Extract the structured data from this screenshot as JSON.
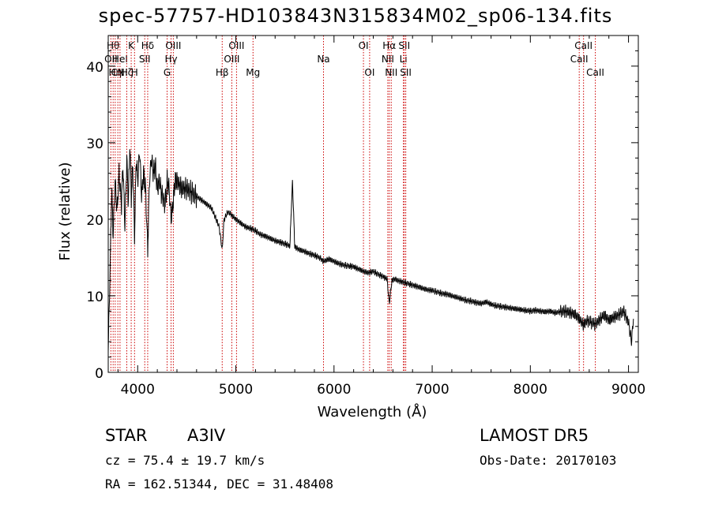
{
  "title": "spec-57757-HD103843N315834M02_sp06-134.fits",
  "info": {
    "object_class": "STAR",
    "subclass": "A3IV",
    "survey": "LAMOST  DR5",
    "cz": "cz = 75.4 ± 19.7 km/s",
    "obs_date": "Obs-Date: 20170103",
    "coords": "RA = 162.51344, DEC =  31.48408"
  },
  "chart_data": {
    "type": "line",
    "xlabel": "Wavelength (Å)",
    "ylabel": "Flux (relative)",
    "xlim": [
      3700,
      9100
    ],
    "ylim": [
      0,
      44
    ],
    "xticks": [
      4000,
      5000,
      6000,
      7000,
      8000,
      9000
    ],
    "yticks": [
      0,
      10,
      20,
      30,
      40
    ],
    "line_color": "#000000",
    "marker_color": "#cc0000",
    "series": [
      {
        "x": [
          3700,
          3720,
          3735,
          3750,
          3770,
          3790,
          3810,
          3835,
          3850,
          3870,
          3889,
          3905,
          3920,
          3935,
          3950,
          3968,
          3985,
          4000,
          4020,
          4040,
          4060,
          4080,
          4102,
          4120,
          4140,
          4160,
          4180,
          4200,
          4220,
          4250,
          4280,
          4300,
          4320,
          4340,
          4360,
          4380,
          4400,
          4450,
          4500,
          4550,
          4600,
          4650,
          4700,
          4750,
          4800,
          4830,
          4861,
          4880,
          4920,
          4960,
          5000,
          5050,
          5100,
          5150,
          5200,
          5250,
          5300,
          5350,
          5400,
          5450,
          5500,
          5550,
          5577,
          5600,
          5650,
          5700,
          5750,
          5800,
          5850,
          5893,
          5950,
          6000,
          6050,
          6100,
          6150,
          6200,
          6250,
          6300,
          6350,
          6400,
          6450,
          6500,
          6540,
          6563,
          6590,
          6620,
          6650,
          6700,
          6750,
          6800,
          6850,
          6900,
          6950,
          7000,
          7050,
          7100,
          7150,
          7200,
          7250,
          7300,
          7350,
          7400,
          7450,
          7500,
          7550,
          7600,
          7650,
          7700,
          7750,
          7800,
          7850,
          7900,
          7950,
          8000,
          8050,
          8100,
          8150,
          8200,
          8250,
          8300,
          8350,
          8400,
          8450,
          8498,
          8542,
          8580,
          8620,
          8662,
          8700,
          8750,
          8800,
          8850,
          8900,
          8950,
          9000,
          9030,
          9050
        ],
        "y": [
          3,
          14,
          24,
          18,
          25,
          21,
          26,
          22,
          27,
          19,
          28,
          22,
          30,
          23,
          27,
          18,
          28,
          25,
          29,
          23,
          26,
          24,
          16,
          25,
          28,
          26,
          27,
          24,
          25,
          23,
          22,
          25,
          24,
          20,
          22,
          25,
          25,
          24,
          24,
          23.5,
          23,
          22.5,
          22,
          21.5,
          20,
          19,
          16,
          20,
          21,
          20.5,
          20,
          19.5,
          19,
          18.8,
          18.5,
          18,
          17.8,
          17.5,
          17.2,
          17,
          16.8,
          16.5,
          25,
          16.4,
          16,
          15.8,
          15.5,
          15.3,
          15,
          14.5,
          14.8,
          14.5,
          14.2,
          14,
          13.9,
          13.8,
          13.5,
          13.2,
          13,
          13.2,
          12.8,
          12.5,
          12.2,
          9,
          12,
          12.2,
          12,
          11.8,
          11.6,
          11.4,
          11.2,
          11,
          10.8,
          10.7,
          10.5,
          10.3,
          10.2,
          10,
          9.8,
          9.6,
          9.4,
          9.3,
          9.1,
          9,
          9.2,
          8.9,
          8.7,
          8.6,
          8.5,
          8.4,
          8.3,
          8.2,
          8.1,
          8,
          8.1,
          8,
          7.9,
          8,
          7.8,
          7.9,
          8,
          7.8,
          7.6,
          7,
          6.2,
          6.8,
          6.5,
          6.3,
          6.8,
          7.5,
          6.8,
          7.2,
          7.5,
          8,
          6.5,
          4,
          7
        ]
      }
    ],
    "line_markers": [
      {
        "wl": 3727,
        "labels": [
          "OII"
        ],
        "row": 2
      },
      {
        "wl": 3750,
        "labels": [
          "Hθ"
        ],
        "row": 1
      },
      {
        "wl": 3771,
        "labels": [
          "Hη"
        ],
        "row": 3
      },
      {
        "wl": 3798,
        "labels": [
          "CN"
        ],
        "row": 3
      },
      {
        "wl": 3820,
        "labels": [
          "HeI"
        ],
        "row": 2
      },
      {
        "wl": 3889,
        "labels": [
          "Hζ"
        ],
        "row": 3
      },
      {
        "wl": 3934,
        "labels": [
          "K"
        ],
        "row": 1
      },
      {
        "wl": 3968,
        "labels": [
          "H"
        ],
        "row": 3
      },
      {
        "wl": 4072,
        "labels": [
          "SII"
        ],
        "row": 2
      },
      {
        "wl": 4102,
        "labels": [
          "Hδ"
        ],
        "row": 1
      },
      {
        "wl": 4300,
        "labels": [
          "G"
        ],
        "row": 3
      },
      {
        "wl": 4340,
        "labels": [
          "Hγ"
        ],
        "row": 2
      },
      {
        "wl": 4363,
        "labels": [
          "OIII"
        ],
        "row": 1
      },
      {
        "wl": 4861,
        "labels": [
          "Hβ"
        ],
        "row": 3
      },
      {
        "wl": 4959,
        "labels": [
          "OIII"
        ],
        "row": 2
      },
      {
        "wl": 5007,
        "labels": [
          "OIII"
        ],
        "row": 1
      },
      {
        "wl": 5175,
        "labels": [
          "Mg"
        ],
        "row": 3
      },
      {
        "wl": 5893,
        "labels": [
          "Na"
        ],
        "row": 2
      },
      {
        "wl": 6300,
        "labels": [
          "OI"
        ],
        "row": 1
      },
      {
        "wl": 6363,
        "labels": [
          "OI"
        ],
        "row": 3
      },
      {
        "wl": 6548,
        "labels": [
          "NII"
        ],
        "row": 2
      },
      {
        "wl": 6563,
        "labels": [
          "Hα"
        ],
        "row": 1
      },
      {
        "wl": 6583,
        "labels": [
          "NII"
        ],
        "row": 3
      },
      {
        "wl": 6707,
        "labels": [
          "Li"
        ],
        "row": 2
      },
      {
        "wl": 6716,
        "labels": [
          "SII"
        ],
        "row": 1
      },
      {
        "wl": 6731,
        "labels": [
          "SII"
        ],
        "row": 3
      },
      {
        "wl": 8498,
        "labels": [
          "CaII"
        ],
        "row": 2
      },
      {
        "wl": 8542,
        "labels": [
          "CaII"
        ],
        "row": 1
      },
      {
        "wl": 8662,
        "labels": [
          "CaII"
        ],
        "row": 3
      }
    ]
  }
}
